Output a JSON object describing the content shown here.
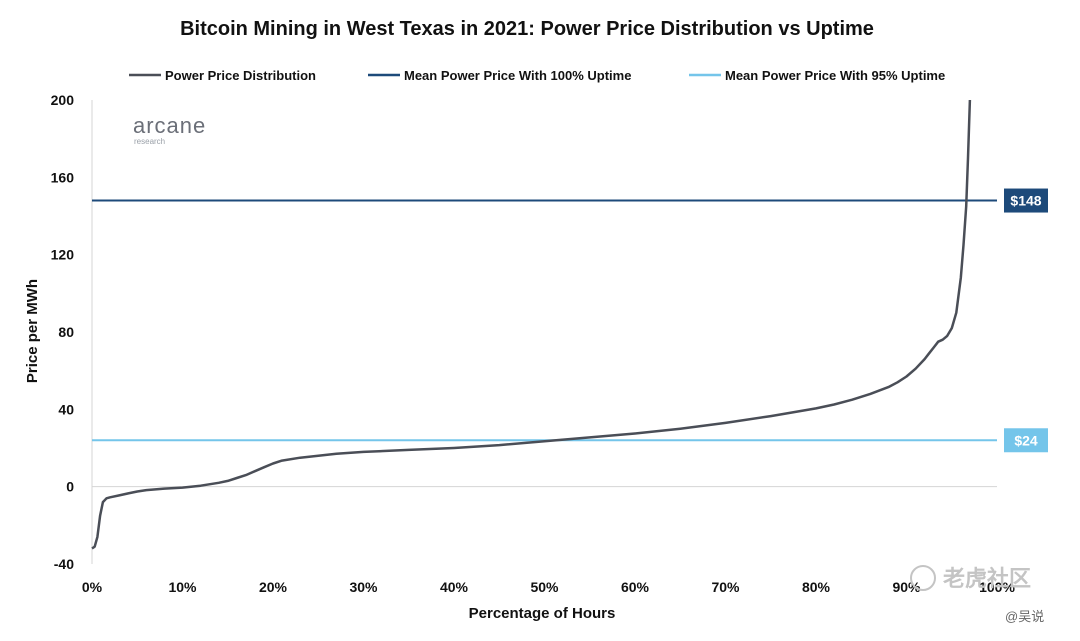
{
  "chart_data": {
    "type": "line",
    "title": "Bitcoin Mining in West Texas in 2021: Power Price Distribution vs Uptime",
    "xlabel": "Percentage of Hours",
    "ylabel": "Price per MWh",
    "xlim": [
      0,
      100
    ],
    "ylim": [
      -40,
      200
    ],
    "x_ticks": [
      "0%",
      "10%",
      "20%",
      "30%",
      "40%",
      "50%",
      "60%",
      "70%",
      "80%",
      "90%",
      "100%"
    ],
    "y_ticks": [
      "200",
      "160",
      "120",
      "80",
      "40",
      "0",
      "-40"
    ],
    "legend_position": "top",
    "series": [
      {
        "name": "Power Price Distribution",
        "color": "#4a4e57",
        "x": [
          0,
          0.3,
          0.6,
          0.9,
          1.2,
          1.6,
          2,
          3,
          4,
          5,
          6,
          8,
          10,
          12,
          14,
          15,
          16,
          17,
          18,
          19,
          20,
          21,
          23,
          25,
          27,
          30,
          35,
          40,
          45,
          50,
          55,
          60,
          65,
          70,
          75,
          80,
          82,
          84,
          86,
          88,
          89,
          90,
          91,
          92,
          92.5,
          93,
          93.5,
          94,
          94.5,
          95,
          95.5,
          96,
          96.3,
          96.6,
          96.8,
          97
        ],
        "y": [
          -32,
          -31,
          -26,
          -15,
          -8,
          -6,
          -5.5,
          -4.5,
          -3.5,
          -2.5,
          -1.8,
          -1,
          -0.5,
          0.5,
          2,
          3,
          4.5,
          6,
          8,
          10,
          12,
          13.5,
          15,
          16,
          17,
          18,
          19,
          20,
          21.5,
          23.5,
          25.5,
          27.5,
          30,
          33,
          36.5,
          40.5,
          42.5,
          45,
          48,
          51.5,
          54,
          57,
          61,
          66,
          69,
          72,
          75,
          76,
          78,
          82,
          90,
          108,
          125,
          145,
          170,
          200
        ]
      },
      {
        "name": "Mean Power Price With 100% Uptime",
        "color": "#1d4a7a",
        "value": 148,
        "label": "$148"
      },
      {
        "name": "Mean Power Price With 95% Uptime",
        "color": "#74c5ea",
        "value": 24,
        "label": "$24"
      }
    ]
  },
  "brand": {
    "name": "arcane",
    "sub": "research"
  },
  "watermark": {
    "text": "老虎社区",
    "handle": "@吴说"
  }
}
